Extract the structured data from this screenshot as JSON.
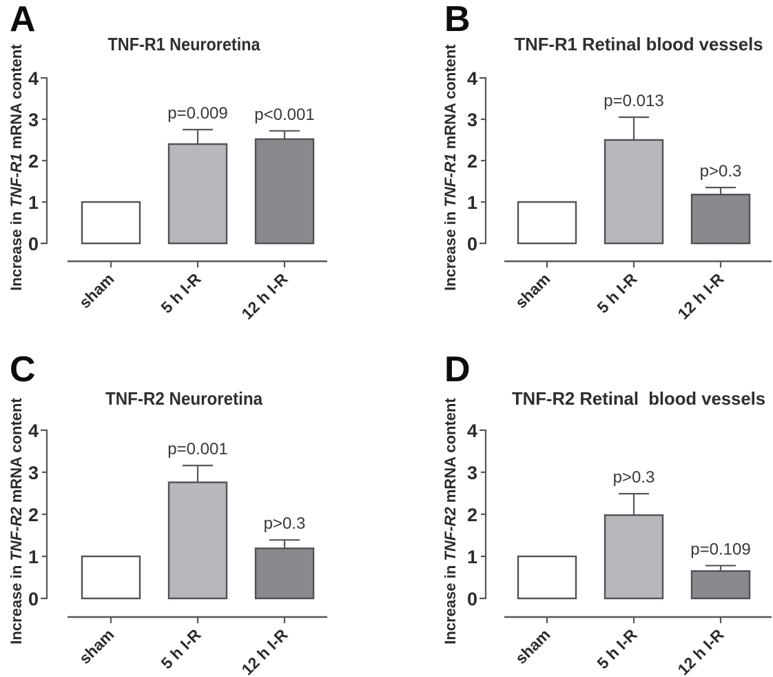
{
  "figure": {
    "panel_letters": [
      "A",
      "B",
      "C",
      "D"
    ]
  },
  "colors": {
    "background": "#ffffff",
    "bar_fills": [
      "#ffffff",
      "#b7b8bc",
      "#898a8e"
    ],
    "bar_stroke": "#515156",
    "axis_line": "#56575b",
    "error_bar": "#55565a",
    "text": "#2b2b2d"
  },
  "chart_data": [
    {
      "panel_letter": "A",
      "type": "bar",
      "title": "TNF-R1 Neuroretina",
      "ylabel": {
        "prefix": "Increase in ",
        "gene_italic": "TNF-R1",
        "suffix": " mRNA content"
      },
      "categories": [
        "sham",
        "5 h I-R",
        "12 h I-R"
      ],
      "values": [
        1.0,
        2.4,
        2.52
      ],
      "error_upper": [
        0,
        0.35,
        0.2
      ],
      "p_values": [
        null,
        "p=0.009",
        "p<0.001"
      ],
      "ylim": [
        0,
        4
      ],
      "yticks": [
        0,
        1,
        2,
        3,
        4
      ],
      "grid": false,
      "legend": null
    },
    {
      "panel_letter": "B",
      "type": "bar",
      "title": "TNF-R1 Retinal blood vessels",
      "ylabel": {
        "prefix": "Increase in ",
        "gene_italic": "TNF-R1",
        "suffix": " mRNA content"
      },
      "categories": [
        "sham",
        "5 h I-R",
        "12 h I-R"
      ],
      "values": [
        1.0,
        2.5,
        1.18
      ],
      "error_upper": [
        0,
        0.55,
        0.17
      ],
      "p_values": [
        null,
        "p=0.013",
        "p>0.3"
      ],
      "ylim": [
        0,
        4
      ],
      "yticks": [
        0,
        1,
        2,
        3,
        4
      ],
      "grid": false,
      "legend": null
    },
    {
      "panel_letter": "C",
      "type": "bar",
      "title": "TNF-R2 Neuroretina",
      "ylabel": {
        "prefix": "Increase in ",
        "gene_italic": "TNF-R2",
        "suffix": " mRNA content"
      },
      "categories": [
        "sham",
        "5 h I-R",
        "12 h I-R"
      ],
      "values": [
        1.0,
        2.76,
        1.19
      ],
      "error_upper": [
        0,
        0.4,
        0.2
      ],
      "p_values": [
        null,
        "p=0.001",
        "p>0.3"
      ],
      "ylim": [
        0,
        4
      ],
      "yticks": [
        0,
        1,
        2,
        3,
        4
      ],
      "grid": false,
      "legend": null
    },
    {
      "panel_letter": "D",
      "type": "bar",
      "title": "TNF-R2 Retinal  blood vessels",
      "ylabel": {
        "prefix": "Increase in ",
        "gene_italic": "TNF-R2",
        "suffix": " mRNA content"
      },
      "categories": [
        "sham",
        "5 h I-R",
        "12 h I-R"
      ],
      "values": [
        1.0,
        1.98,
        0.65
      ],
      "error_upper": [
        0,
        0.51,
        0.13
      ],
      "p_values": [
        null,
        "p>0.3",
        "p=0.109"
      ],
      "ylim": [
        0,
        4
      ],
      "yticks": [
        0,
        1,
        2,
        3,
        4
      ],
      "grid": false,
      "legend": null
    }
  ]
}
